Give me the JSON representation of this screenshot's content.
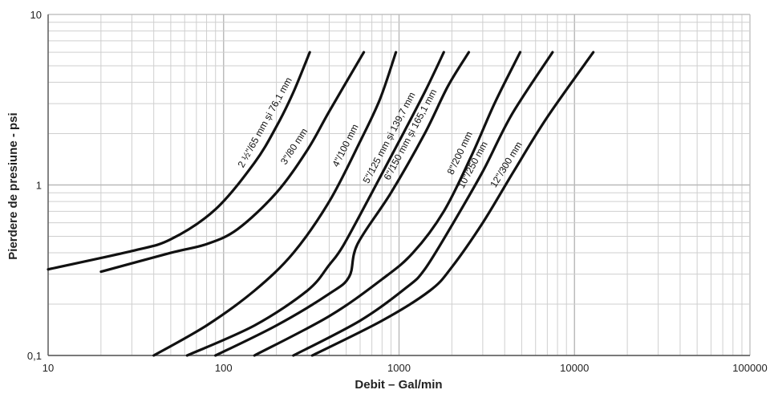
{
  "chart_data": {
    "type": "line",
    "title": "",
    "xlabel": "Debit – Gal/min",
    "ylabel": "Pierdere de presiune - psi",
    "x_scale": "log",
    "y_scale": "log",
    "xlim": [
      10,
      100000
    ],
    "ylim": [
      0.1,
      10
    ],
    "x_ticks": [
      "10",
      "100",
      "1000",
      "10000",
      "100000"
    ],
    "y_ticks": [
      "0,1",
      "1",
      "10"
    ],
    "grid": true,
    "series": [
      {
        "name": "2 ½\"/65 mm și 76,1 mm",
        "points": [
          [
            10,
            0.32
          ],
          [
            30,
            0.41
          ],
          [
            50,
            0.48
          ],
          [
            90,
            0.72
          ],
          [
            150,
            1.35
          ],
          [
            200,
            2.2
          ],
          [
            250,
            3.5
          ],
          [
            310,
            6.0
          ]
        ]
      },
      {
        "name": "3\"/80 mm",
        "points": [
          [
            20,
            0.31
          ],
          [
            50,
            0.4
          ],
          [
            80,
            0.45
          ],
          [
            120,
            0.55
          ],
          [
            200,
            0.9
          ],
          [
            300,
            1.6
          ],
          [
            400,
            2.7
          ],
          [
            630,
            6.0
          ]
        ]
      },
      {
        "name": "4\"/100 mm",
        "points": [
          [
            40,
            0.1
          ],
          [
            80,
            0.15
          ],
          [
            150,
            0.24
          ],
          [
            250,
            0.4
          ],
          [
            400,
            0.8
          ],
          [
            600,
            1.8
          ],
          [
            780,
            3.2
          ],
          [
            960,
            6.0
          ]
        ]
      },
      {
        "name": "5\"/125 mm și 139,7 mm",
        "points": [
          [
            62,
            0.1
          ],
          [
            150,
            0.15
          ],
          [
            300,
            0.24
          ],
          [
            400,
            0.34
          ],
          [
            480,
            0.44
          ],
          [
            700,
            0.9
          ],
          [
            1000,
            1.8
          ],
          [
            1400,
            3.5
          ],
          [
            1800,
            6.0
          ]
        ]
      },
      {
        "name": "6\"/150 mm și 165,1 mm",
        "points": [
          [
            90,
            0.1
          ],
          [
            200,
            0.15
          ],
          [
            400,
            0.23
          ],
          [
            520,
            0.29
          ],
          [
            580,
            0.45
          ],
          [
            900,
            0.9
          ],
          [
            1400,
            2.0
          ],
          [
            1900,
            3.8
          ],
          [
            2500,
            6.0
          ]
        ]
      },
      {
        "name": "8\"/200 mm",
        "points": [
          [
            150,
            0.1
          ],
          [
            400,
            0.17
          ],
          [
            800,
            0.28
          ],
          [
            1200,
            0.4
          ],
          [
            1800,
            0.7
          ],
          [
            2600,
            1.5
          ],
          [
            3500,
            3.0
          ],
          [
            4900,
            6.0
          ]
        ]
      },
      {
        "name": "10\"/250 mm",
        "points": [
          [
            250,
            0.1
          ],
          [
            600,
            0.16
          ],
          [
            1100,
            0.25
          ],
          [
            1400,
            0.32
          ],
          [
            2000,
            0.58
          ],
          [
            3000,
            1.2
          ],
          [
            4400,
            2.6
          ],
          [
            7500,
            6.0
          ]
        ]
      },
      {
        "name": "12\"/300 mm",
        "points": [
          [
            320,
            0.1
          ],
          [
            800,
            0.16
          ],
          [
            1500,
            0.24
          ],
          [
            2000,
            0.33
          ],
          [
            3000,
            0.6
          ],
          [
            4500,
            1.2
          ],
          [
            7000,
            2.5
          ],
          [
            12800,
            6.0
          ]
        ]
      }
    ]
  }
}
